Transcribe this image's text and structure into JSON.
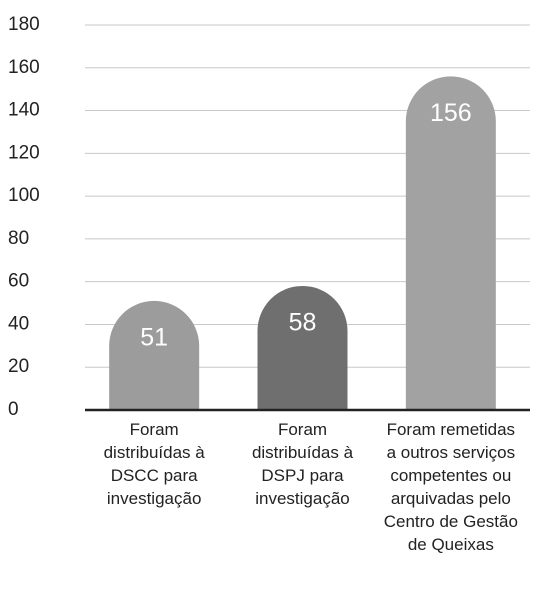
{
  "chart_data": {
    "type": "bar",
    "categories": [
      "Foram distribuídas à DSCC para investigação",
      "Foram distribuídas à DSPJ para investigação",
      "Foram remetidas a outros serviços competentes ou arquivadas pelo Centro de Gestão de Queixas"
    ],
    "values": [
      51,
      58,
      156
    ],
    "colors": [
      "#9c9c9c",
      "#6f6f6f",
      "#a2a2a2"
    ],
    "ylim": [
      0,
      180
    ],
    "yticks": [
      0,
      20,
      40,
      60,
      80,
      100,
      120,
      140,
      160,
      180
    ],
    "grid": true
  }
}
